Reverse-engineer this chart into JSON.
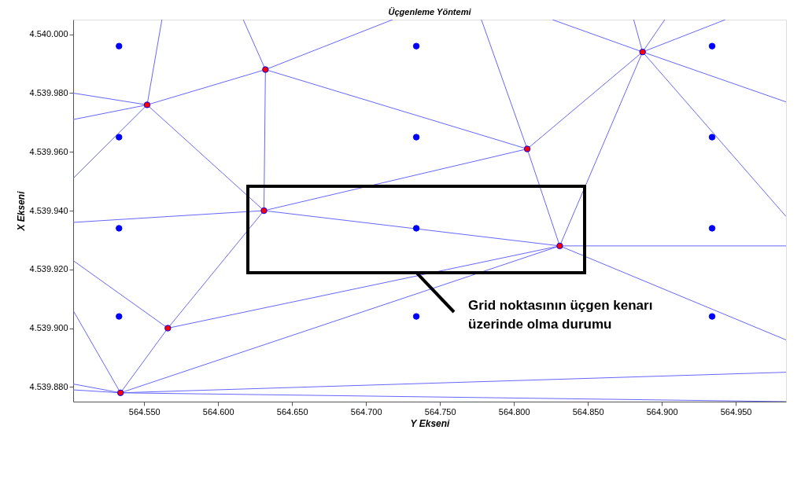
{
  "chart_data": {
    "type": "scatter",
    "title": "Üçgenleme Yöntemi",
    "xlabel": "Y Ekseni",
    "ylabel": "X Ekseni",
    "xlim": [
      564502,
      564984
    ],
    "ylim": [
      4539875,
      4540005
    ],
    "xticks": [
      {
        "value": 564550,
        "label": "564.550"
      },
      {
        "value": 564600,
        "label": "564.600"
      },
      {
        "value": 564650,
        "label": "564.650"
      },
      {
        "value": 564700,
        "label": "564.700"
      },
      {
        "value": 564750,
        "label": "564.750"
      },
      {
        "value": 564800,
        "label": "564.800"
      },
      {
        "value": 564850,
        "label": "564.850"
      },
      {
        "value": 564900,
        "label": "564.900"
      },
      {
        "value": 564950,
        "label": "564.950"
      }
    ],
    "yticks": [
      {
        "value": 4539880,
        "label": "4.539.880"
      },
      {
        "value": 4539900,
        "label": "4.539.900"
      },
      {
        "value": 4539920,
        "label": "4.539.920"
      },
      {
        "value": 4539940,
        "label": "4.539.940"
      },
      {
        "value": 4539960,
        "label": "4.539.960"
      },
      {
        "value": 4539980,
        "label": "4.539.980"
      },
      {
        "value": 4540000,
        "label": "4.540.000"
      }
    ],
    "line_style": "solid",
    "annotations": [
      {
        "text": "Grid noktasının üçgen kenarı üzerinde olma durumu",
        "x": 564734,
        "y": 4539919
      }
    ],
    "series": [
      {
        "type": "line",
        "color": "#6666ff",
        "x": [
          564552,
          564562
        ],
        "values": [
          4539976,
          4540005
        ]
      },
      {
        "type": "line",
        "color": "#6666ff",
        "x": [
          564502,
          564552
        ],
        "values": [
          4539980,
          4539976
        ]
      },
      {
        "type": "line",
        "color": "#6666ff",
        "x": [
          564502,
          564552
        ],
        "values": [
          4539971,
          4539976
        ]
      },
      {
        "type": "line",
        "color": "#6666ff",
        "x": [
          564502,
          564552
        ],
        "values": [
          4539951,
          4539976
        ]
      },
      {
        "type": "line",
        "color": "#6666ff",
        "x": [
          564552,
          564632
        ],
        "values": [
          4539976,
          4539988
        ]
      },
      {
        "type": "line",
        "color": "#6666ff",
        "x": [
          564552,
          564631
        ],
        "values": [
          4539976,
          4539940
        ]
      },
      {
        "type": "line",
        "color": "#6666ff",
        "x": [
          564632,
          564617
        ],
        "values": [
          4539988,
          4540005
        ]
      },
      {
        "type": "line",
        "color": "#6666ff",
        "x": [
          564632,
          564631
        ],
        "values": [
          4539988,
          4539940
        ]
      },
      {
        "type": "line",
        "color": "#6666ff",
        "x": [
          564632,
          564718
        ],
        "values": [
          4539988,
          4540005
        ]
      },
      {
        "type": "line",
        "color": "#6666ff",
        "x": [
          564632,
          564809
        ],
        "values": [
          4539988,
          4539961
        ]
      },
      {
        "type": "line",
        "color": "#6666ff",
        "x": [
          564631,
          564809
        ],
        "values": [
          4539940,
          4539961
        ]
      },
      {
        "type": "line",
        "color": "#6666ff",
        "x": [
          564502,
          564631
        ],
        "values": [
          4539936,
          4539940
        ]
      },
      {
        "type": "line",
        "color": "#6666ff",
        "x": [
          564631,
          564831
        ],
        "values": [
          4539940,
          4539928
        ]
      },
      {
        "type": "line",
        "color": "#6666ff",
        "x": [
          564631,
          564566
        ],
        "values": [
          4539940,
          4539900
        ]
      },
      {
        "type": "line",
        "color": "#6666ff",
        "x": [
          564502,
          564566
        ],
        "values": [
          4539923,
          4539900
        ]
      },
      {
        "type": "line",
        "color": "#6666ff",
        "x": [
          564566,
          564831
        ],
        "values": [
          4539900,
          4539928
        ]
      },
      {
        "type": "line",
        "color": "#6666ff",
        "x": [
          564534,
          564831
        ],
        "values": [
          4539878,
          4539928
        ]
      },
      {
        "type": "line",
        "color": "#6666ff",
        "x": [
          564566,
          564534
        ],
        "values": [
          4539900,
          4539878
        ]
      },
      {
        "type": "line",
        "color": "#6666ff",
        "x": [
          564502,
          564534
        ],
        "values": [
          4539906,
          4539878
        ]
      },
      {
        "type": "line",
        "color": "#6666ff",
        "x": [
          564502,
          564534
        ],
        "values": [
          4539881,
          4539878
        ]
      },
      {
        "type": "line",
        "color": "#6666ff",
        "x": [
          564502,
          564534
        ],
        "values": [
          4539879,
          4539878
        ]
      },
      {
        "type": "line",
        "color": "#6666ff",
        "x": [
          564534,
          564984
        ],
        "values": [
          4539878,
          4539885
        ]
      },
      {
        "type": "line",
        "color": "#6666ff",
        "x": [
          564534,
          564984
        ],
        "values": [
          4539878,
          4539875
        ]
      },
      {
        "type": "line",
        "color": "#6666ff",
        "x": [
          564809,
          564887
        ],
        "values": [
          4539961,
          4539994
        ]
      },
      {
        "type": "line",
        "color": "#6666ff",
        "x": [
          564778,
          564809
        ],
        "values": [
          4540005,
          4539961
        ]
      },
      {
        "type": "line",
        "color": "#6666ff",
        "x": [
          564809,
          564831
        ],
        "values": [
          4539961,
          4539928
        ]
      },
      {
        "type": "line",
        "color": "#6666ff",
        "x": [
          564887,
          564831
        ],
        "values": [
          4539994,
          4539928
        ]
      },
      {
        "type": "line",
        "color": "#6666ff",
        "x": [
          564887,
          564881
        ],
        "values": [
          4539994,
          4540005
        ]
      },
      {
        "type": "line",
        "color": "#6666ff",
        "x": [
          564887,
          564902
        ],
        "values": [
          4539994,
          4540005
        ]
      },
      {
        "type": "line",
        "color": "#6666ff",
        "x": [
          564887,
          564943
        ],
        "values": [
          4539994,
          4540005
        ]
      },
      {
        "type": "line",
        "color": "#6666ff",
        "x": [
          564826,
          564887
        ],
        "values": [
          4540005,
          4539994
        ]
      },
      {
        "type": "line",
        "color": "#6666ff",
        "x": [
          564887,
          564984
        ],
        "values": [
          4539994,
          4539977
        ]
      },
      {
        "type": "line",
        "color": "#6666ff",
        "x": [
          564887,
          564984
        ],
        "values": [
          4539994,
          4539938
        ]
      },
      {
        "type": "line",
        "color": "#6666ff",
        "x": [
          564831,
          564984
        ],
        "values": [
          4539928,
          4539928
        ]
      },
      {
        "type": "line",
        "color": "#6666ff",
        "x": [
          564831,
          564984
        ],
        "values": [
          4539928,
          4539896
        ]
      },
      {
        "color": "#0000ff",
        "marker": "circle",
        "x": [
          564533,
          564734,
          564934,
          564533,
          564734,
          564934,
          564533,
          564734,
          564934,
          564533,
          564734,
          564934
        ],
        "values": [
          4539996,
          4539996,
          4539996,
          4539965,
          4539965,
          4539965,
          4539934,
          4539934,
          4539934,
          4539904,
          4539904,
          4539904
        ]
      },
      {
        "color": "#ff0000",
        "marker": "circle",
        "x": [
          564552,
          564632,
          564631,
          564809,
          564887,
          564831,
          564566,
          564534
        ],
        "values": [
          4539976,
          4539988,
          4539940,
          4539961,
          4539994,
          4539928,
          4539900,
          4539878
        ]
      }
    ]
  }
}
